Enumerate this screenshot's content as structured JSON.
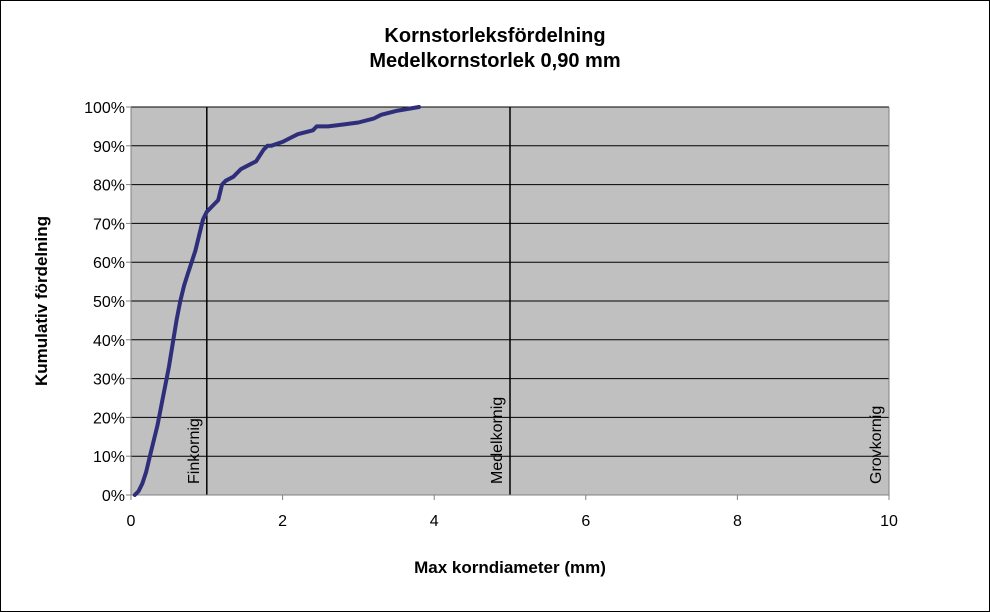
{
  "chart_data": {
    "type": "line",
    "title": "Kornstorleksfördelning",
    "subtitle": "Medelkornstorlek 0,90 mm",
    "xlabel": "Max korndiameter (mm)",
    "ylabel": "Kumulativ fördelning",
    "xlim": [
      0,
      10
    ],
    "ylim": [
      0,
      1
    ],
    "x_ticks": [
      0,
      2,
      4,
      6,
      8,
      10
    ],
    "y_ticks": [
      0,
      0.1,
      0.2,
      0.3,
      0.4,
      0.5,
      0.6,
      0.7,
      0.8,
      0.9,
      1.0
    ],
    "y_tick_labels": [
      "0%",
      "10%",
      "20%",
      "30%",
      "40%",
      "50%",
      "60%",
      "70%",
      "80%",
      "90%",
      "100%"
    ],
    "grid": true,
    "plot_background": "#c0c0c0",
    "series": [
      {
        "color": "#2e2e7a",
        "x": [
          0.05,
          0.1,
          0.15,
          0.2,
          0.25,
          0.3,
          0.35,
          0.4,
          0.45,
          0.5,
          0.55,
          0.6,
          0.65,
          0.7,
          0.75,
          0.8,
          0.85,
          0.9,
          0.95,
          1.0,
          1.05,
          1.1,
          1.15,
          1.2,
          1.25,
          1.35,
          1.45,
          1.55,
          1.65,
          1.75,
          1.8,
          1.85,
          2.0,
          2.1,
          2.2,
          2.4,
          2.45,
          2.6,
          2.8,
          3.0,
          3.2,
          3.3,
          3.5,
          3.8
        ],
        "y": [
          0.0,
          0.01,
          0.03,
          0.06,
          0.1,
          0.14,
          0.18,
          0.23,
          0.28,
          0.33,
          0.39,
          0.45,
          0.5,
          0.54,
          0.57,
          0.6,
          0.63,
          0.67,
          0.71,
          0.73,
          0.74,
          0.75,
          0.76,
          0.8,
          0.81,
          0.82,
          0.84,
          0.85,
          0.86,
          0.89,
          0.9,
          0.9,
          0.91,
          0.92,
          0.93,
          0.94,
          0.95,
          0.95,
          0.955,
          0.96,
          0.97,
          0.98,
          0.99,
          1.0
        ]
      }
    ],
    "reference_lines": [
      {
        "x": 1,
        "label": "Finkornig"
      },
      {
        "x": 5,
        "label": "Medelkornig"
      },
      {
        "x": 10,
        "label": "Grovkornig"
      }
    ]
  }
}
